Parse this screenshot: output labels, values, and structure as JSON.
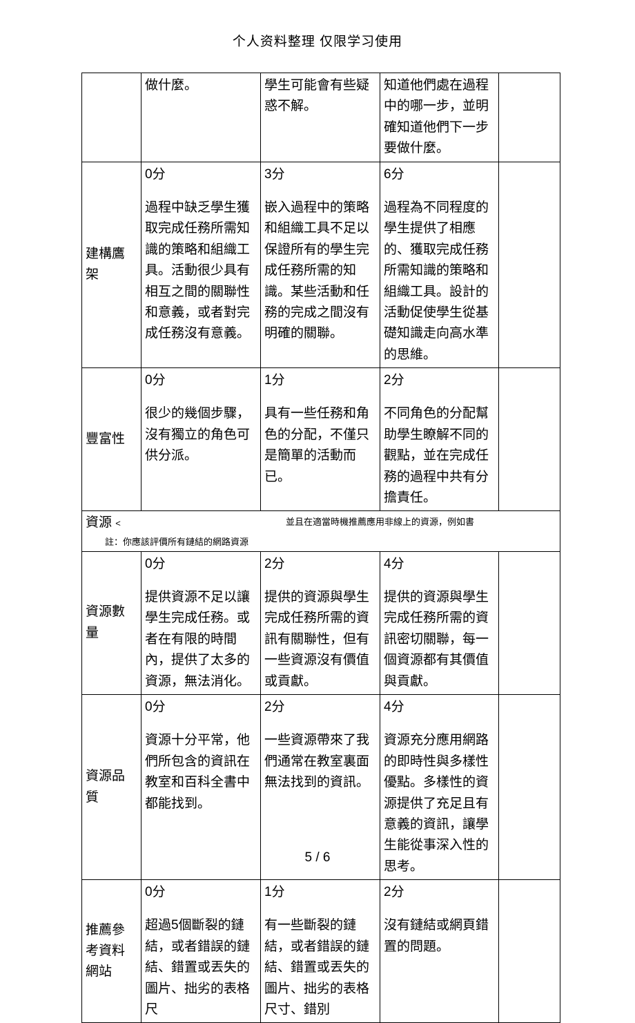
{
  "header": "个人资料整理  仅限学习使用",
  "footer": "5 / 6",
  "rows": [
    {
      "label": "",
      "c2": {
        "score": "",
        "text": "做什麼。"
      },
      "c3": {
        "score": "",
        "text": "學生可能會有些疑惑不解。"
      },
      "c4": {
        "score": "",
        "text": "知道他們處在過程中的哪一步，並明確知道他們下一步要做什麼。"
      }
    },
    {
      "label": "建構鷹架",
      "c2": {
        "score": "0分",
        "text": "過程中缺乏學生獲取完成任務所需知識的策略和組織工具。活動很少具有相互之間的關聯性和意義，或者對完成任務沒有意義。"
      },
      "c3": {
        "score": "3分",
        "text": "嵌入過程中的策略和組織工具不足以保證所有的學生完成任務所需的知識。某些活動和任務的完成之間沒有明確的關聯。"
      },
      "c4": {
        "score": "6分",
        "text": "過程為不同程度的學生提供了相應的、獲取完成任務所需知識的策略和組織工具。設計的活動促使學生從基礎知識走向高水準的思維。"
      }
    },
    {
      "label": "豐富性",
      "c2": {
        "score": "0分",
        "text": "很少的幾個步驟，沒有獨立的角色可供分派。"
      },
      "c3": {
        "score": "1分",
        "text": "具有一些任務和角色的分配，不僅只是簡單的活動而已。"
      },
      "c4": {
        "score": "2分",
        "text": "不同角色的分配幫助學生瞭解不同的觀點，並在完成任務的過程中共有分擔責任。"
      }
    }
  ],
  "section": {
    "label": "資源",
    "arrow": "<",
    "note_right": "並且在適當時機推薦應用非線上的資源，例如書",
    "note_below": "註：你應該評價所有鏈結的網路資源"
  },
  "rows2": [
    {
      "label": "資源數量",
      "c2": {
        "score": "0分",
        "text": "提供資源不足以讓學生完成任務。或者在有限的時間內，提供了太多的資源，無法消化。"
      },
      "c3": {
        "score": "2分",
        "text": "提供的資源與學生完成任務所需的資訊有關聯性，但有一些資源沒有價值或貢獻。"
      },
      "c4": {
        "score": "4分",
        "text": "提供的資源與學生完成任務所需的資訊密切關聯，每一個資源都有其價值與貢獻。"
      }
    },
    {
      "label": "資源品質",
      "c2": {
        "score": "0分",
        "text": "資源十分平常，他們所包含的資訊在教室和百科全書中都能找到。"
      },
      "c3": {
        "score": "2分",
        "text": "一些資源帶來了我們通常在教室裏面無法找到的資訊。"
      },
      "c4": {
        "score": "4分",
        "text": "資源充分應用網路的即時性與多樣性優點。多樣性的資源提供了充足且有意義的資訊，讓學生能從事深入性的思考。"
      }
    },
    {
      "label": "推薦參考資料網站",
      "c2": {
        "score": "0分",
        "text": "超過5個斷裂的鏈結，或者錯誤的鏈結、錯置或丟失的圖片、拙劣的表格尺"
      },
      "c3": {
        "score": "1分",
        "text": "有一些斷裂的鏈結，或者錯誤的鏈結、錯置或丟失的圖片、拙劣的表格尺寸、錯別"
      },
      "c4": {
        "score": "2分",
        "text": "沒有鏈結或網頁錯置的問題。"
      }
    }
  ]
}
